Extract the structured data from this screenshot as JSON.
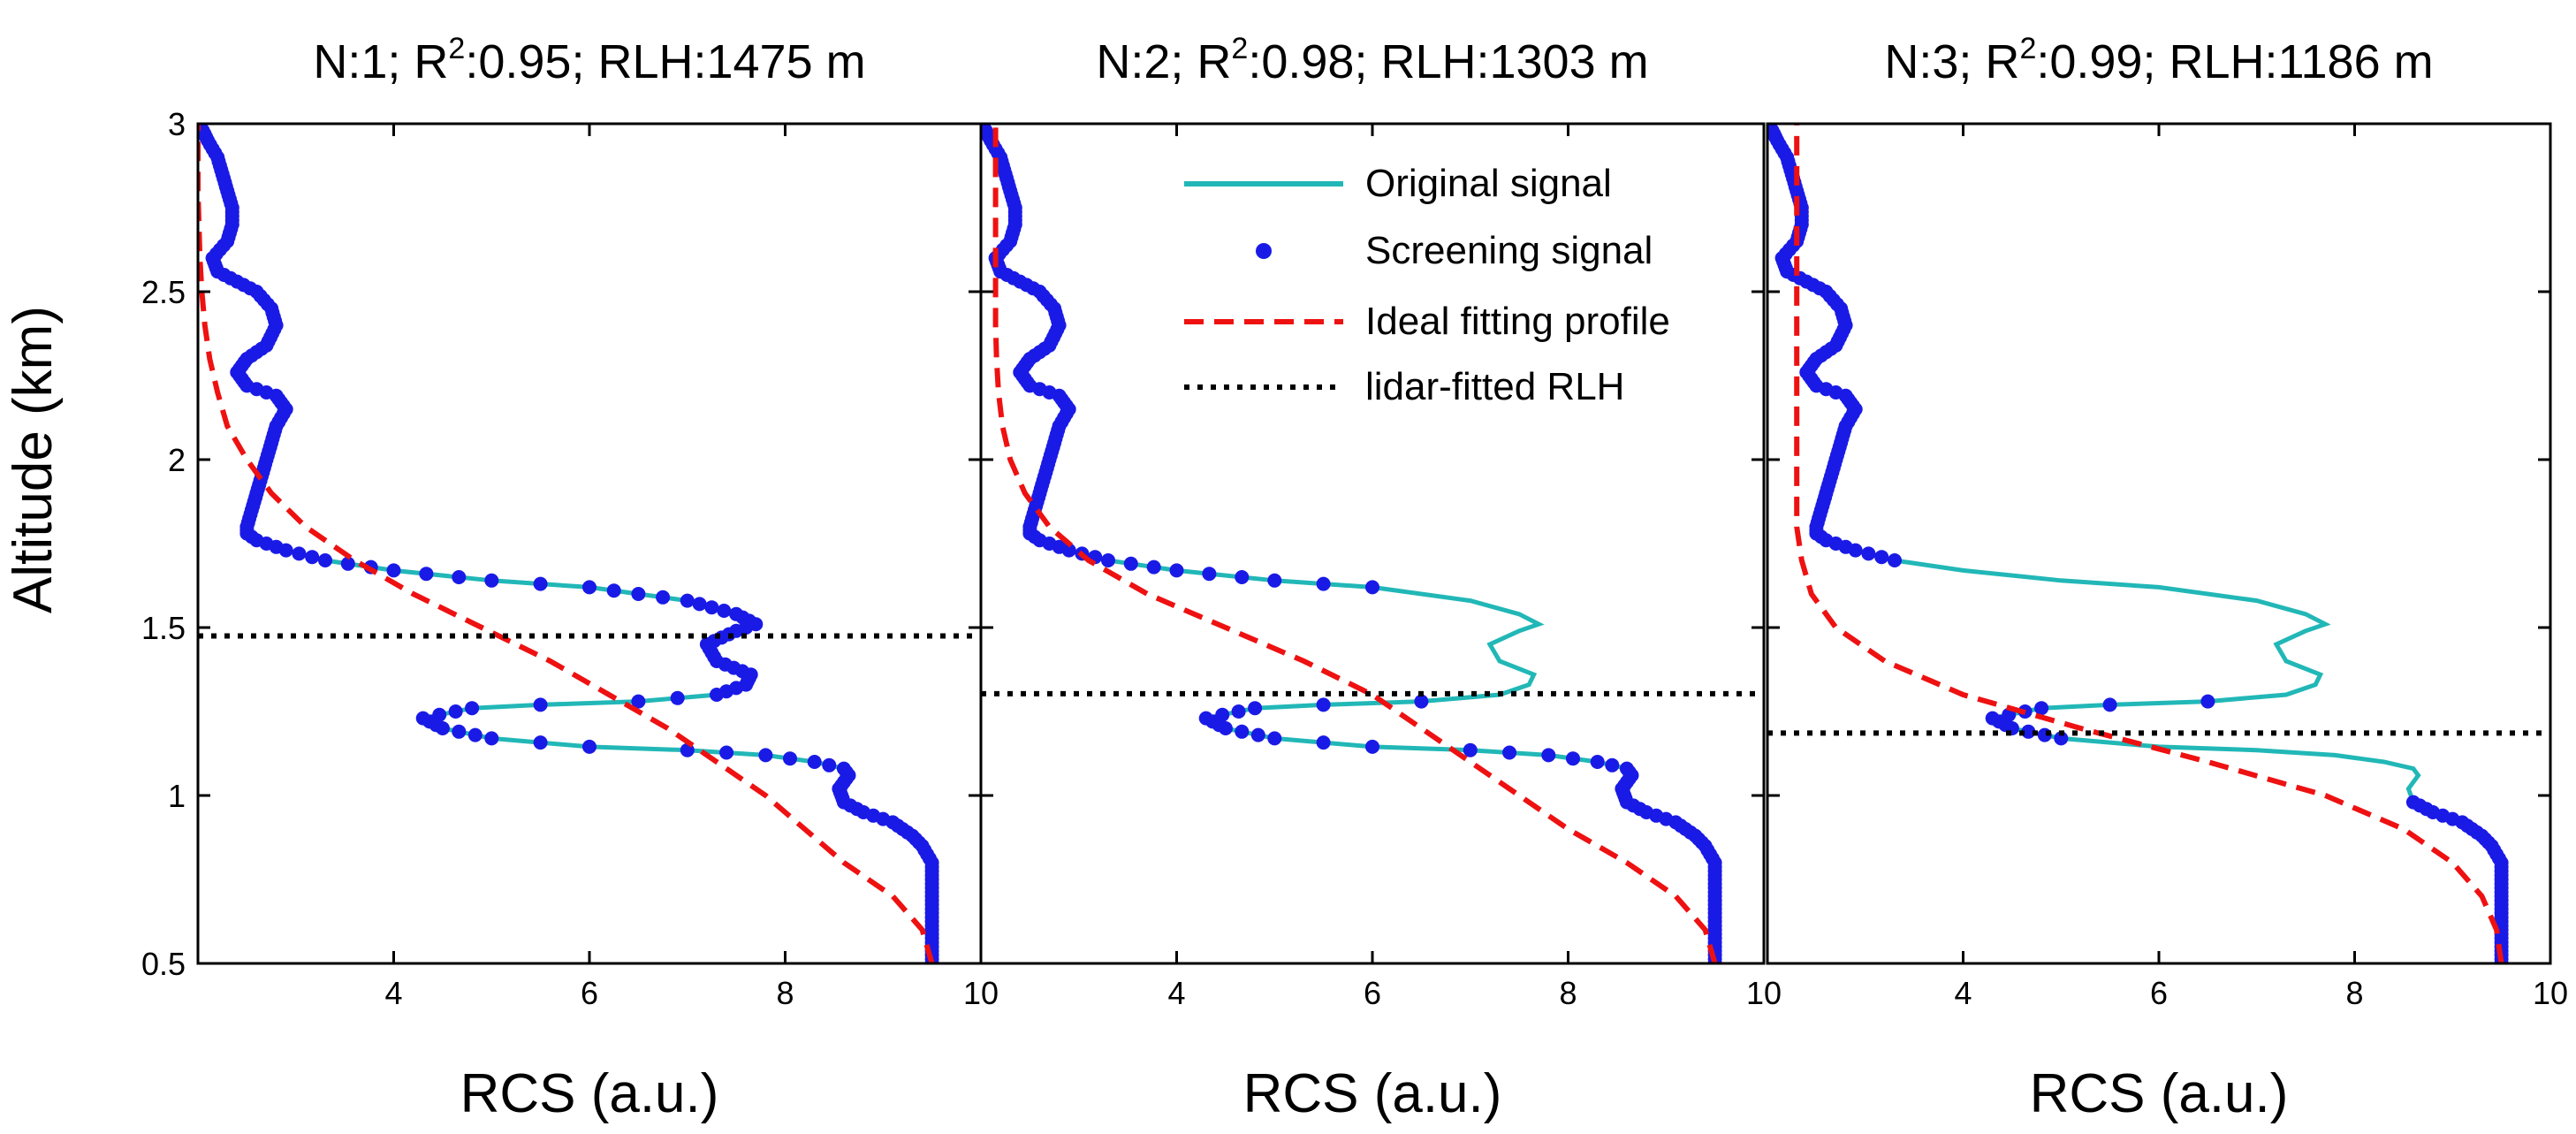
{
  "chart_data": {
    "type": "line",
    "ylabel": "Altitude (km)",
    "xlabel": "RCS (a.u.)",
    "xlim": [
      2,
      10
    ],
    "ylim": [
      0.5,
      3
    ],
    "xticks": [
      4,
      6,
      8,
      10
    ],
    "yticks": [
      0.5,
      1,
      1.5,
      2,
      2.5,
      3
    ],
    "xtick_labels": [
      "4",
      "6",
      "8",
      "10"
    ],
    "ytick_labels": [
      "0.5",
      "1",
      "1.5",
      "2",
      "2.5",
      "3"
    ],
    "colors": {
      "original": "#22b7b7",
      "screening": "#1a1ae6",
      "fit": "#ee1111",
      "rlh": "#000000"
    },
    "legend": {
      "position": "upper-center of middle panel",
      "entries": [
        "Original signal",
        "Screening signal",
        "Ideal fitting profile",
        "lidar-fitted RLH"
      ]
    },
    "original_profile": [
      [
        9.5,
        0.5
      ],
      [
        9.5,
        0.6
      ],
      [
        9.5,
        0.7
      ],
      [
        9.5,
        0.8
      ],
      [
        9.4,
        0.85
      ],
      [
        9.3,
        0.88
      ],
      [
        9.1,
        0.92
      ],
      [
        8.8,
        0.95
      ],
      [
        8.6,
        0.98
      ],
      [
        8.55,
        1.02
      ],
      [
        8.65,
        1.06
      ],
      [
        8.6,
        1.08
      ],
      [
        8.3,
        1.1
      ],
      [
        7.8,
        1.12
      ],
      [
        7.0,
        1.135
      ],
      [
        6.0,
        1.145
      ],
      [
        5.0,
        1.17
      ],
      [
        4.5,
        1.2
      ],
      [
        4.3,
        1.23
      ],
      [
        4.8,
        1.26
      ],
      [
        5.5,
        1.27
      ],
      [
        6.5,
        1.28
      ],
      [
        7.3,
        1.3
      ],
      [
        7.6,
        1.33
      ],
      [
        7.65,
        1.36
      ],
      [
        7.3,
        1.4
      ],
      [
        7.2,
        1.45
      ],
      [
        7.5,
        1.49
      ],
      [
        7.7,
        1.51
      ],
      [
        7.5,
        1.54
      ],
      [
        7.0,
        1.58
      ],
      [
        6.0,
        1.62
      ],
      [
        5.0,
        1.64
      ],
      [
        4.0,
        1.67
      ],
      [
        3.3,
        1.7
      ],
      [
        2.9,
        1.73
      ],
      [
        2.6,
        1.76
      ],
      [
        2.5,
        1.78
      ],
      [
        2.5,
        1.8
      ],
      [
        2.55,
        1.85
      ],
      [
        2.6,
        1.9
      ],
      [
        2.65,
        1.95
      ],
      [
        2.7,
        2.0
      ],
      [
        2.75,
        2.05
      ],
      [
        2.8,
        2.1
      ],
      [
        2.9,
        2.15
      ],
      [
        2.8,
        2.19
      ],
      [
        2.5,
        2.22
      ],
      [
        2.4,
        2.26
      ],
      [
        2.5,
        2.3
      ],
      [
        2.7,
        2.34
      ],
      [
        2.8,
        2.4
      ],
      [
        2.75,
        2.45
      ],
      [
        2.6,
        2.5
      ],
      [
        2.4,
        2.53
      ],
      [
        2.2,
        2.56
      ],
      [
        2.15,
        2.6
      ],
      [
        2.3,
        2.65
      ],
      [
        2.35,
        2.7
      ],
      [
        2.35,
        2.75
      ],
      [
        2.3,
        2.8
      ],
      [
        2.25,
        2.85
      ],
      [
        2.2,
        2.9
      ],
      [
        2.1,
        2.95
      ],
      [
        2.05,
        2.98
      ]
    ],
    "panels": [
      {
        "title_prefix": "N:1; R",
        "title_sup": "2",
        "title_suffix": ":0.95; RLH:1475 m",
        "rlh_km": 1.475,
        "screening_ranges": [
          [
            0.5,
            3.0
          ]
        ],
        "fit": [
          [
            9.5,
            0.5
          ],
          [
            9.4,
            0.6
          ],
          [
            9.1,
            0.7
          ],
          [
            8.6,
            0.8
          ],
          [
            8.2,
            0.9
          ],
          [
            7.8,
            1.0
          ],
          [
            7.3,
            1.1
          ],
          [
            6.8,
            1.2
          ],
          [
            6.2,
            1.3
          ],
          [
            5.6,
            1.4
          ],
          [
            4.9,
            1.5
          ],
          [
            4.2,
            1.6
          ],
          [
            3.6,
            1.7
          ],
          [
            3.1,
            1.8
          ],
          [
            2.75,
            1.9
          ],
          [
            2.5,
            2.0
          ],
          [
            2.3,
            2.1
          ],
          [
            2.2,
            2.2
          ],
          [
            2.12,
            2.3
          ],
          [
            2.07,
            2.4
          ],
          [
            2.04,
            2.5
          ],
          [
            2.02,
            2.6
          ],
          [
            2.01,
            2.7
          ],
          [
            2.0,
            2.8
          ],
          [
            2.0,
            2.9
          ],
          [
            2.0,
            3.0
          ]
        ]
      },
      {
        "title_prefix": "N:2; R",
        "title_sup": "2",
        "title_suffix": ":0.98; RLH:1303 m",
        "rlh_km": 1.303,
        "screening_ranges": [
          [
            0.5,
            1.28
          ],
          [
            1.62,
            3.0
          ]
        ],
        "fit": [
          [
            9.5,
            0.5
          ],
          [
            9.4,
            0.6
          ],
          [
            9.1,
            0.7
          ],
          [
            8.6,
            0.8
          ],
          [
            8.0,
            0.9
          ],
          [
            7.5,
            1.0
          ],
          [
            7.0,
            1.1
          ],
          [
            6.5,
            1.2
          ],
          [
            6.0,
            1.3
          ],
          [
            5.3,
            1.4
          ],
          [
            4.5,
            1.5
          ],
          [
            3.7,
            1.6
          ],
          [
            3.1,
            1.7
          ],
          [
            2.7,
            1.8
          ],
          [
            2.45,
            1.9
          ],
          [
            2.3,
            2.0
          ],
          [
            2.22,
            2.1
          ],
          [
            2.18,
            2.2
          ],
          [
            2.16,
            2.3
          ],
          [
            2.15,
            2.4
          ],
          [
            2.15,
            2.6
          ],
          [
            2.15,
            2.8
          ],
          [
            2.15,
            3.0
          ]
        ]
      },
      {
        "title_prefix": "N:3; R",
        "title_sup": "2",
        "title_suffix": ":0.99; RLH:1186 m",
        "rlh_km": 1.186,
        "screening_ranges": [
          [
            0.5,
            0.98
          ],
          [
            1.17,
            1.28
          ],
          [
            1.7,
            3.0
          ]
        ],
        "fit": [
          [
            9.5,
            0.5
          ],
          [
            9.45,
            0.6
          ],
          [
            9.3,
            0.7
          ],
          [
            9.0,
            0.8
          ],
          [
            8.5,
            0.9
          ],
          [
            7.7,
            1.0
          ],
          [
            6.5,
            1.1
          ],
          [
            5.2,
            1.2
          ],
          [
            4.0,
            1.3
          ],
          [
            3.2,
            1.4
          ],
          [
            2.7,
            1.5
          ],
          [
            2.45,
            1.6
          ],
          [
            2.35,
            1.7
          ],
          [
            2.3,
            1.8
          ],
          [
            2.3,
            2.0
          ],
          [
            2.3,
            2.5
          ],
          [
            2.3,
            3.0
          ]
        ]
      }
    ]
  }
}
